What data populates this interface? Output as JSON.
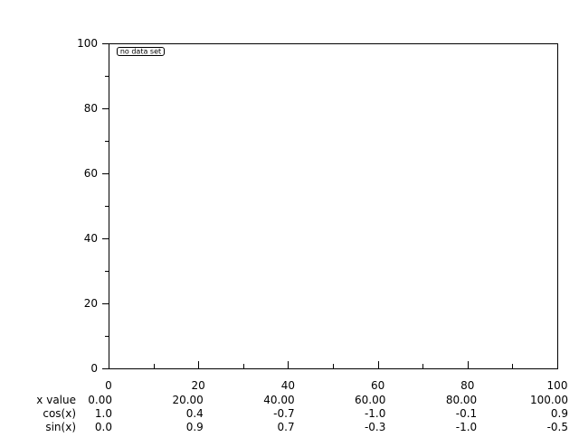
{
  "chart_data": {
    "type": "line",
    "title": "",
    "xlabel": "",
    "ylabel": "",
    "xlim": [
      0,
      100
    ],
    "ylim": [
      0,
      100
    ],
    "x_ticks": [
      "0",
      "20",
      "40",
      "60",
      "80",
      "100"
    ],
    "y_ticks": [
      "0",
      "20",
      "40",
      "60",
      "80",
      "100"
    ],
    "grid": false,
    "legend": {
      "text": "no data set",
      "placement": "top-left"
    },
    "series": [],
    "table": {
      "rows": [
        {
          "label": "x value",
          "values": [
            "0.00",
            "20.00",
            "40.00",
            "60.00",
            "80.00",
            "100.00"
          ]
        },
        {
          "label": "cos(x)",
          "values": [
            "1.0",
            "0.4",
            "-0.7",
            "-1.0",
            "-0.1",
            "0.9"
          ]
        },
        {
          "label": "sin(x)",
          "values": [
            "0.0",
            "0.9",
            "0.7",
            "-0.3",
            "-1.0",
            "-0.5"
          ]
        }
      ]
    }
  }
}
